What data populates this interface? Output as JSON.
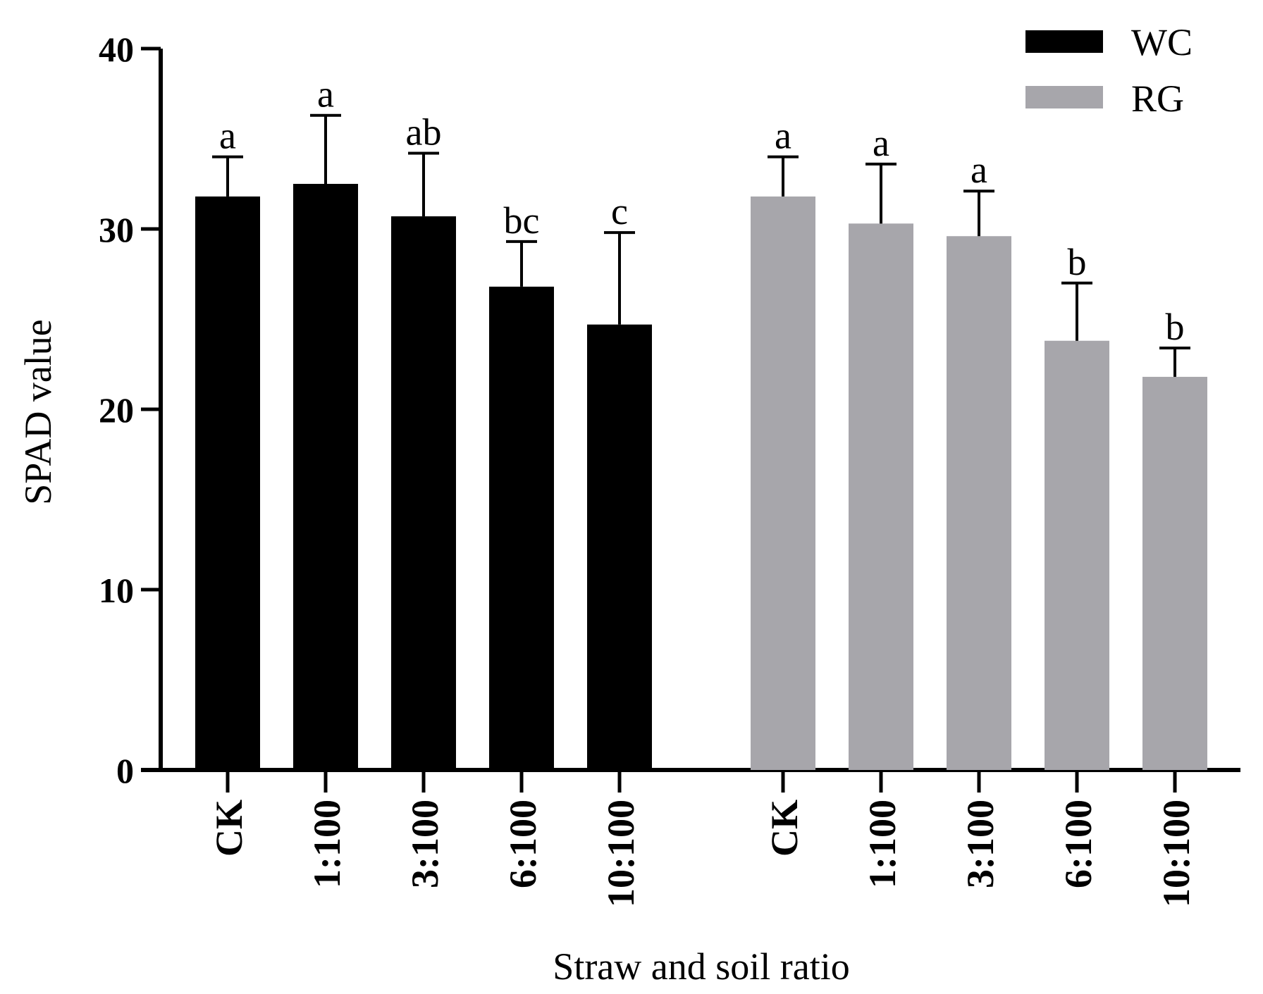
{
  "chart_data": {
    "type": "bar",
    "title": "",
    "xlabel": "Straw and soil ratio",
    "ylabel": "SPAD value",
    "ylim": [
      0,
      40
    ],
    "yticks": [
      0,
      10,
      20,
      30,
      40
    ],
    "grid": false,
    "legend_position": "top-right",
    "series": [
      {
        "name": "WC",
        "color": "#000000",
        "categories": [
          "CK",
          "1:100",
          "3:100",
          "6:100",
          "10:100"
        ],
        "values": [
          31.8,
          32.5,
          30.7,
          26.8,
          24.7
        ],
        "errors": [
          2.2,
          3.8,
          3.5,
          2.5,
          5.1
        ],
        "significance": [
          "a",
          "a",
          "ab",
          "bc",
          "c"
        ]
      },
      {
        "name": "RG",
        "color": "#a7a6ab",
        "categories": [
          "CK",
          "1:100",
          "3:100",
          "6:100",
          "10:100"
        ],
        "values": [
          31.8,
          30.3,
          29.6,
          23.8,
          21.8
        ],
        "errors": [
          2.2,
          3.3,
          2.5,
          3.2,
          1.6
        ],
        "significance": [
          "a",
          "a",
          "a",
          "b",
          "b"
        ]
      }
    ]
  }
}
